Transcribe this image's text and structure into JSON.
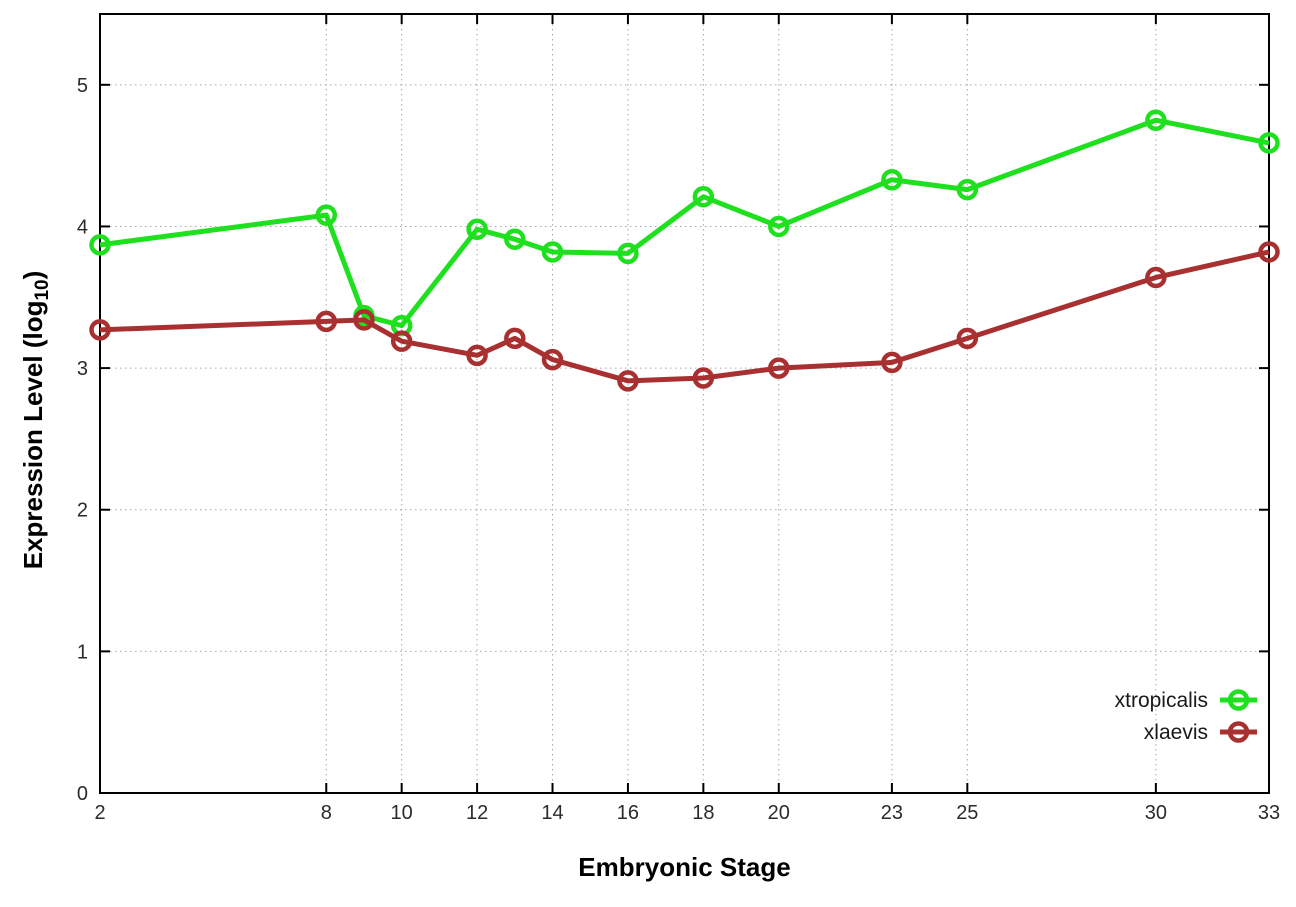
{
  "chart_data": {
    "type": "line",
    "title": "",
    "xlabel": "Embryonic Stage",
    "ylabel_main": "Expression Level (log",
    "ylabel_sub": "10",
    "ylabel_close": ")",
    "x": [
      2,
      8,
      9,
      10,
      12,
      13,
      14,
      16,
      18,
      20,
      23,
      25,
      30,
      33
    ],
    "x_ticks": [
      2,
      8,
      10,
      12,
      14,
      16,
      18,
      20,
      23,
      25,
      30,
      33
    ],
    "y_ticks": [
      0,
      1,
      2,
      3,
      4,
      5
    ],
    "xlim": [
      2,
      33
    ],
    "ylim": [
      0,
      5.5
    ],
    "grid": true,
    "legend_position": "inside-bottom-right",
    "series": [
      {
        "name": "xtropicalis",
        "color": "#1ee01e",
        "values": [
          3.87,
          4.08,
          3.37,
          3.3,
          3.98,
          3.91,
          3.82,
          3.81,
          4.21,
          4.0,
          4.33,
          4.26,
          4.75,
          4.59
        ]
      },
      {
        "name": "xlaevis",
        "color": "#a83030",
        "values": [
          3.27,
          3.33,
          3.34,
          3.19,
          3.09,
          3.21,
          3.06,
          2.91,
          2.93,
          3.0,
          3.04,
          3.21,
          3.64,
          3.82
        ]
      }
    ]
  },
  "style": {
    "background": "#ffffff",
    "border_color": "#000000",
    "grid_color": "#a8a8a8",
    "tick_text_color": "#2b2b2b",
    "legend_text_color": "#1a1a1a"
  }
}
